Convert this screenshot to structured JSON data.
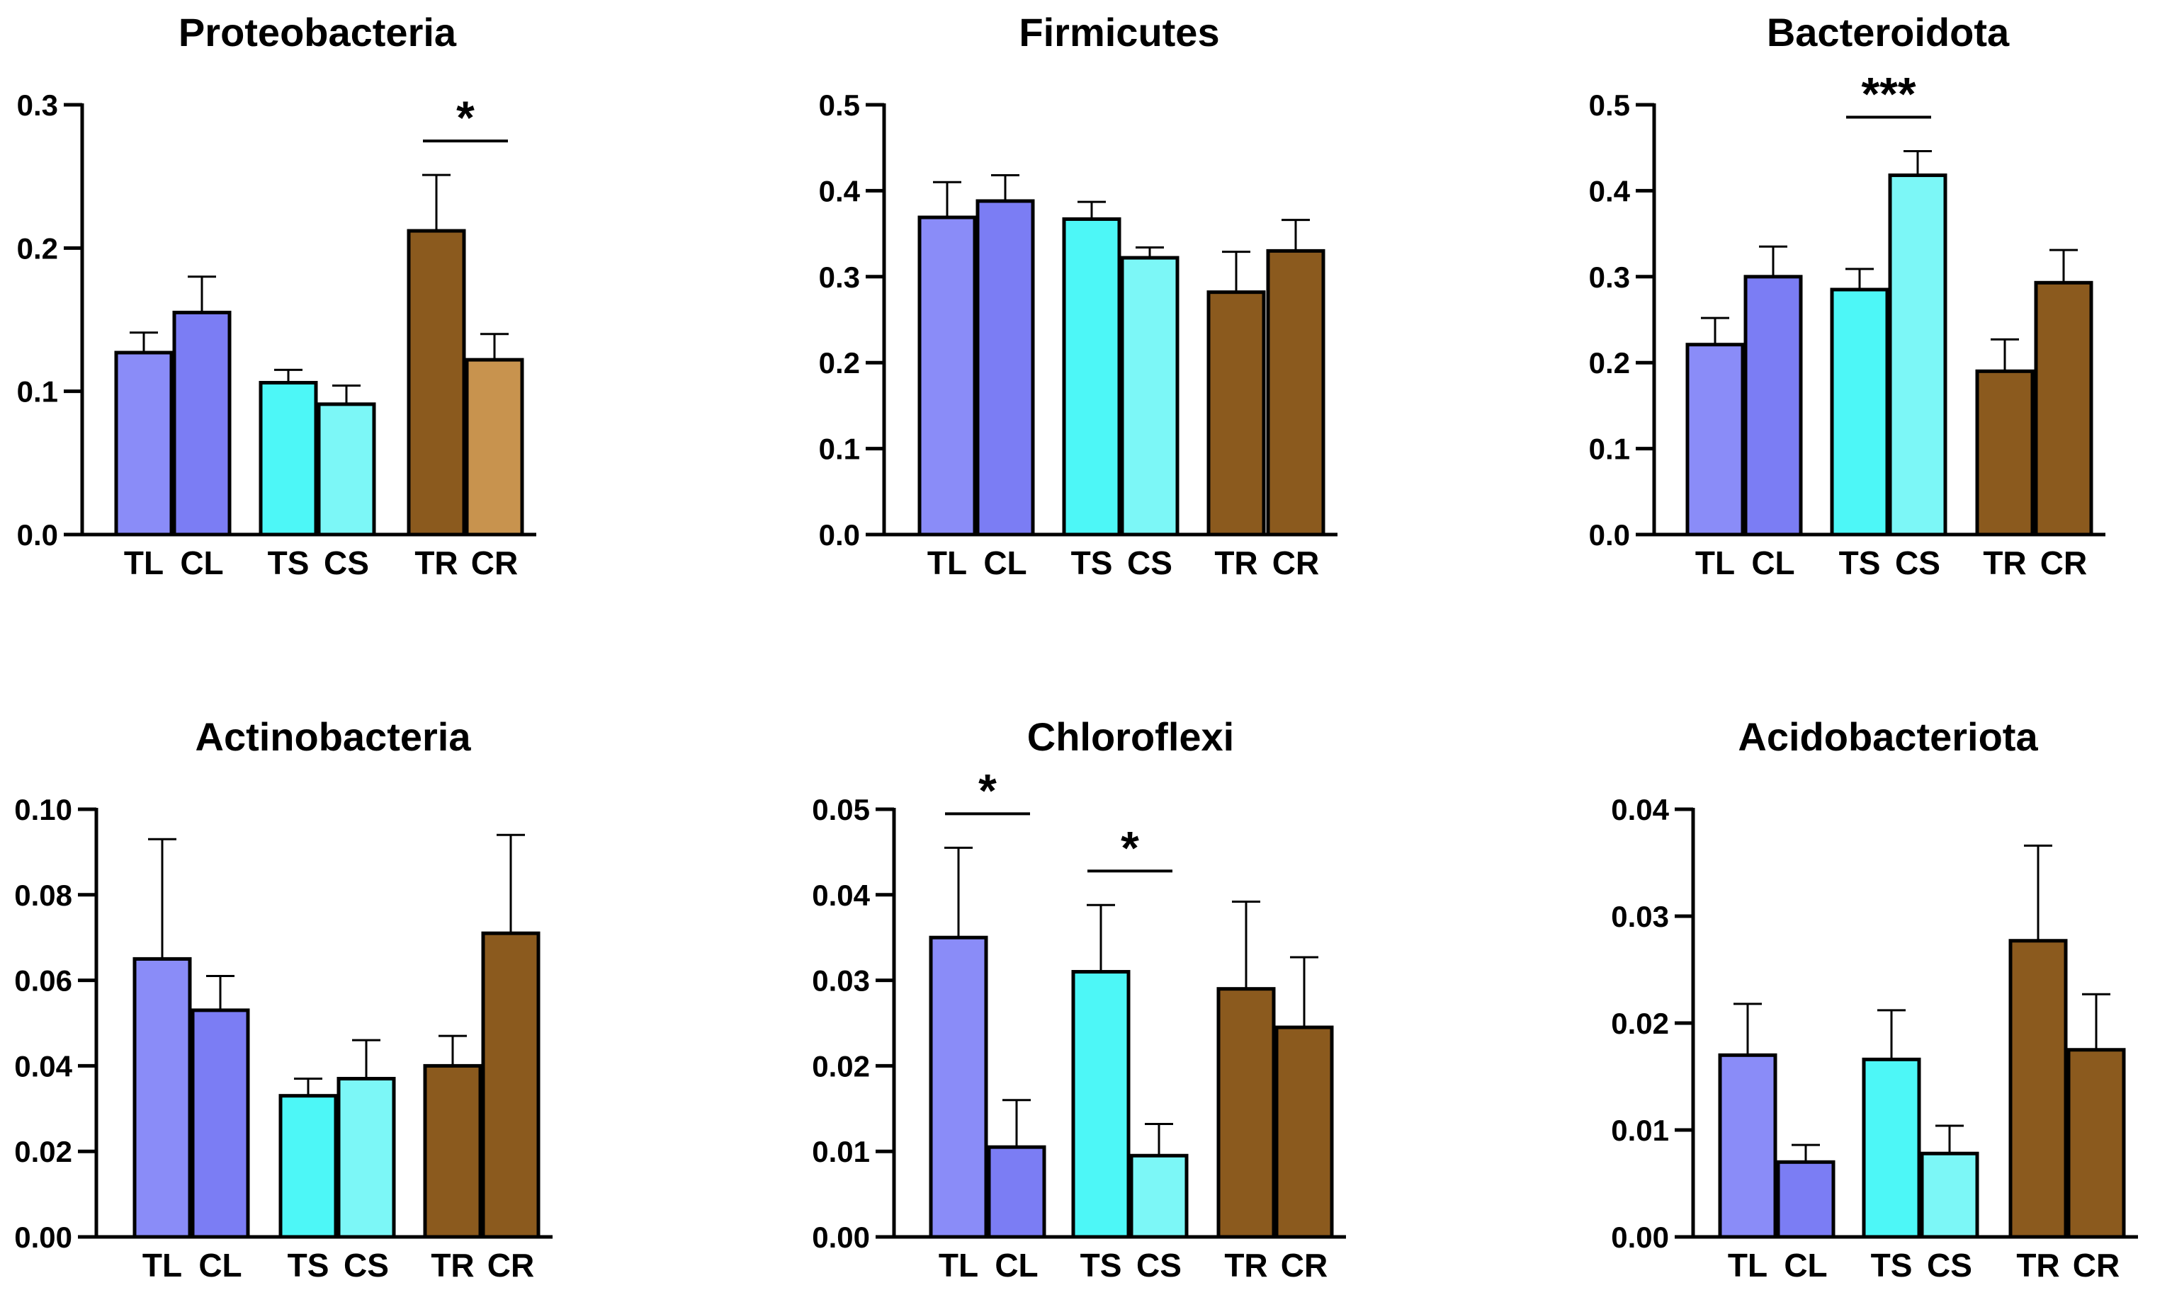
{
  "figure": {
    "colors": {
      "TL": "#8A8CF8",
      "CL": "#7B7DF4",
      "TS": "#4DF7F7",
      "CS": "#7CF7F7",
      "TR": "#8B5A1E",
      "CR": "#8B5A1E",
      "CR_proteobacteria": "#C8934E",
      "axis": "#000000"
    }
  },
  "chart_data": [
    {
      "type": "bar",
      "title": "Proteobacteria",
      "categories": [
        "TL",
        "CL",
        "TS",
        "CS",
        "TR",
        "CR"
      ],
      "values": [
        0.127,
        0.155,
        0.106,
        0.091,
        0.212,
        0.122
      ],
      "errors": [
        0.014,
        0.025,
        0.009,
        0.013,
        0.039,
        0.018
      ],
      "ylim": [
        0,
        0.3
      ],
      "yticks": [
        "0.0",
        "0.1",
        "0.2",
        "0.3"
      ],
      "significance": [
        {
          "between": [
            "TR",
            "CR"
          ],
          "label": "*"
        }
      ]
    },
    {
      "type": "bar",
      "title": "Firmicutes",
      "categories": [
        "TL",
        "CL",
        "TS",
        "CS",
        "TR",
        "CR"
      ],
      "values": [
        0.369,
        0.388,
        0.367,
        0.322,
        0.282,
        0.33
      ],
      "errors": [
        0.041,
        0.03,
        0.02,
        0.012,
        0.047,
        0.036
      ],
      "ylim": [
        0,
        0.5
      ],
      "yticks": [
        "0.0",
        "0.1",
        "0.2",
        "0.3",
        "0.4",
        "0.5"
      ],
      "significance": []
    },
    {
      "type": "bar",
      "title": "Bacteroidota",
      "categories": [
        "TL",
        "CL",
        "TS",
        "CS",
        "TR",
        "CR"
      ],
      "values": [
        0.221,
        0.3,
        0.285,
        0.418,
        0.19,
        0.293
      ],
      "errors": [
        0.031,
        0.035,
        0.024,
        0.028,
        0.037,
        0.038
      ],
      "ylim": [
        0,
        0.5
      ],
      "yticks": [
        "0.0",
        "0.1",
        "0.2",
        "0.3",
        "0.4",
        "0.5"
      ],
      "significance": [
        {
          "between": [
            "TS",
            "CS"
          ],
          "label": "***"
        }
      ]
    },
    {
      "type": "bar",
      "title": "Actinobacteria",
      "categories": [
        "TL",
        "CL",
        "TS",
        "CS",
        "TR",
        "CR"
      ],
      "values": [
        0.065,
        0.053,
        0.033,
        0.037,
        0.04,
        0.071
      ],
      "errors": [
        0.028,
        0.008,
        0.004,
        0.009,
        0.007,
        0.023
      ],
      "ylim": [
        0,
        0.1
      ],
      "yticks": [
        "0.00",
        "0.02",
        "0.04",
        "0.06",
        "0.08",
        "0.10"
      ],
      "significance": []
    },
    {
      "type": "bar",
      "title": "Chloroflexi",
      "categories": [
        "TL",
        "CL",
        "TS",
        "CS",
        "TR",
        "CR"
      ],
      "values": [
        0.035,
        0.0105,
        0.031,
        0.0095,
        0.029,
        0.0245
      ],
      "errors": [
        0.0105,
        0.0055,
        0.0078,
        0.0037,
        0.0102,
        0.0082
      ],
      "ylim": [
        0,
        0.05
      ],
      "yticks": [
        "0.00",
        "0.01",
        "0.02",
        "0.03",
        "0.04",
        "0.05"
      ],
      "significance": [
        {
          "between": [
            "TL",
            "CL"
          ],
          "label": "*"
        },
        {
          "between": [
            "TS",
            "CS"
          ],
          "label": "*"
        }
      ]
    },
    {
      "type": "bar",
      "title": "Acidobacteriota",
      "categories": [
        "TL",
        "CL",
        "TS",
        "CS",
        "TR",
        "CR"
      ],
      "values": [
        0.017,
        0.007,
        0.0166,
        0.0078,
        0.0277,
        0.0175
      ],
      "errors": [
        0.0048,
        0.0016,
        0.0046,
        0.0026,
        0.0089,
        0.0052
      ],
      "ylim": [
        0,
        0.04
      ],
      "yticks": [
        "0.00",
        "0.01",
        "0.02",
        "0.03",
        "0.04"
      ],
      "significance": []
    }
  ]
}
